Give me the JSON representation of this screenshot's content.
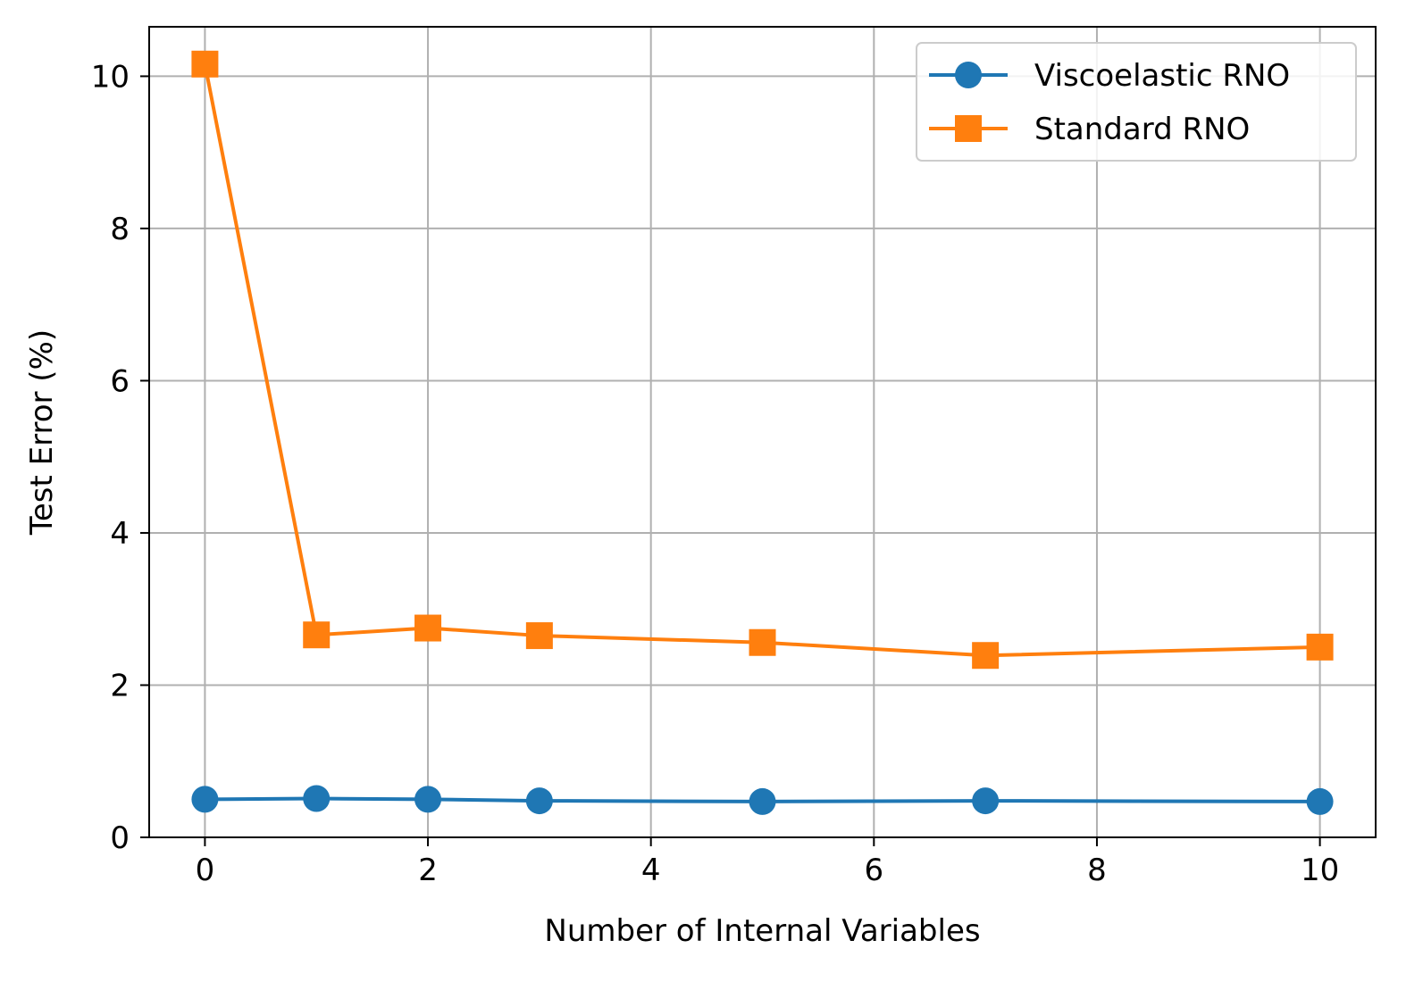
{
  "chart_data": {
    "type": "line",
    "title": "",
    "xlabel": "Number of Internal Variables",
    "ylabel": "Test Error (%)",
    "xlim": [
      -0.5,
      10.5
    ],
    "ylim": [
      0,
      10.65
    ],
    "xticks": [
      0,
      2,
      4,
      6,
      8,
      10
    ],
    "yticks": [
      0,
      2,
      4,
      6,
      8,
      10
    ],
    "grid": true,
    "legend_position": "top-right",
    "x": [
      0,
      1,
      2,
      3,
      5,
      7,
      10
    ],
    "series": [
      {
        "name": "Viscoelastic RNO",
        "color": "#1f77b4",
        "marker": "circle",
        "values": [
          0.5,
          0.51,
          0.5,
          0.48,
          0.47,
          0.48,
          0.47
        ]
      },
      {
        "name": "Standard RNO",
        "color": "#ff7f0e",
        "marker": "square",
        "values": [
          10.16,
          2.66,
          2.75,
          2.65,
          2.56,
          2.39,
          2.5
        ]
      }
    ]
  }
}
